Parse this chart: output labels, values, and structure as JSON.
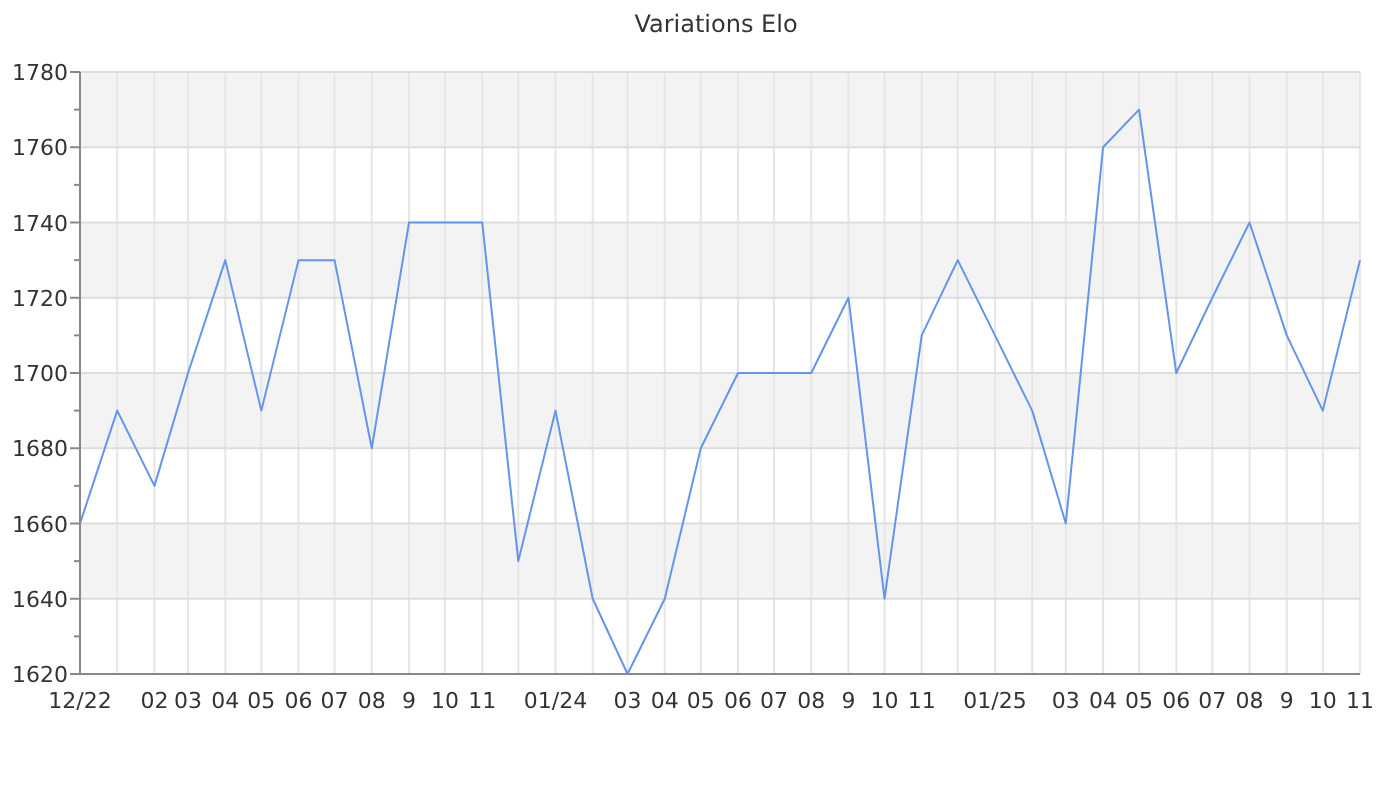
{
  "chart_data": {
    "type": "line",
    "title": "Variations Elo",
    "x": [
      "2022-12",
      "2023-01",
      "2023-02",
      "2023-03",
      "2023-04",
      "2023-05",
      "2023-06",
      "2023-07",
      "2023-08",
      "2023-09",
      "2023-10",
      "2023-11",
      "2023-12",
      "2024-01",
      "2024-02",
      "2024-03",
      "2024-04",
      "2024-05",
      "2024-06",
      "2024-07",
      "2024-08",
      "2024-09",
      "2024-10",
      "2024-11",
      "2024-12",
      "2025-01",
      "2025-02",
      "2025-03",
      "2025-04",
      "2025-05",
      "2025-06",
      "2025-07",
      "2025-08",
      "2025-09",
      "2025-10",
      "2025-11"
    ],
    "series": [
      {
        "color": "#6495ed",
        "values": [
          1660,
          1690,
          1670,
          1700,
          1730,
          1690,
          1730,
          1730,
          1680,
          1740,
          1740,
          1740,
          1650,
          1690,
          1640,
          1620,
          1640,
          1680,
          1700,
          1700,
          1700,
          1720,
          1640,
          1710,
          1730,
          1710,
          1690,
          1660,
          1760,
          1770,
          1700,
          1720,
          1740,
          1710,
          1690,
          1730
        ]
      }
    ],
    "xlim": [
      "2022-12",
      "2025-11"
    ],
    "xticks": [
      {
        "value": "2022-12",
        "label": "12/22"
      },
      {
        "value": "2023-01",
        "label": null
      },
      {
        "value": "2023-02",
        "label": "02"
      },
      {
        "value": "2023-03",
        "label": "03"
      },
      {
        "value": "2023-04",
        "label": "04"
      },
      {
        "value": "2023-05",
        "label": "05"
      },
      {
        "value": "2023-06",
        "label": "06"
      },
      {
        "value": "2023-07",
        "label": "07"
      },
      {
        "value": "2023-08",
        "label": "08"
      },
      {
        "value": "2023-09",
        "label": "9"
      },
      {
        "value": "2023-10",
        "label": "10"
      },
      {
        "value": "2023-11",
        "label": "11"
      },
      {
        "value": "2023-12",
        "label": null
      },
      {
        "value": "2024-01",
        "label": "01/24"
      },
      {
        "value": "2024-02",
        "label": null
      },
      {
        "value": "2024-03",
        "label": "03"
      },
      {
        "value": "2024-04",
        "label": "04"
      },
      {
        "value": "2024-05",
        "label": "05"
      },
      {
        "value": "2024-06",
        "label": "06"
      },
      {
        "value": "2024-07",
        "label": "07"
      },
      {
        "value": "2024-08",
        "label": "08"
      },
      {
        "value": "2024-09",
        "label": "9"
      },
      {
        "value": "2024-10",
        "label": "10"
      },
      {
        "value": "2024-11",
        "label": "11"
      },
      {
        "value": "2024-12",
        "label": null
      },
      {
        "value": "2025-01",
        "label": "01/25"
      },
      {
        "value": "2025-02",
        "label": null
      },
      {
        "value": "2025-03",
        "label": "03"
      },
      {
        "value": "2025-04",
        "label": "04"
      },
      {
        "value": "2025-05",
        "label": "05"
      },
      {
        "value": "2025-06",
        "label": "06"
      },
      {
        "value": "2025-07",
        "label": "07"
      },
      {
        "value": "2025-08",
        "label": "08"
      },
      {
        "value": "2025-09",
        "label": "9"
      },
      {
        "value": "2025-10",
        "label": "10"
      },
      {
        "value": "2025-11",
        "label": "11"
      }
    ],
    "ylim": [
      1620,
      1780
    ],
    "yticks": [
      1620,
      {
        "value": 1630,
        "label": null
      },
      1640,
      {
        "value": 1650,
        "label": null
      },
      1660,
      {
        "value": 1670,
        "label": null
      },
      1680,
      {
        "value": 1690,
        "label": null
      },
      1700,
      {
        "value": 1710,
        "label": null
      },
      1720,
      {
        "value": 1730,
        "label": null
      },
      1740,
      {
        "value": 1750,
        "label": null
      },
      1760,
      {
        "value": 1770,
        "label": null
      },
      1780
    ],
    "grid": true
  }
}
